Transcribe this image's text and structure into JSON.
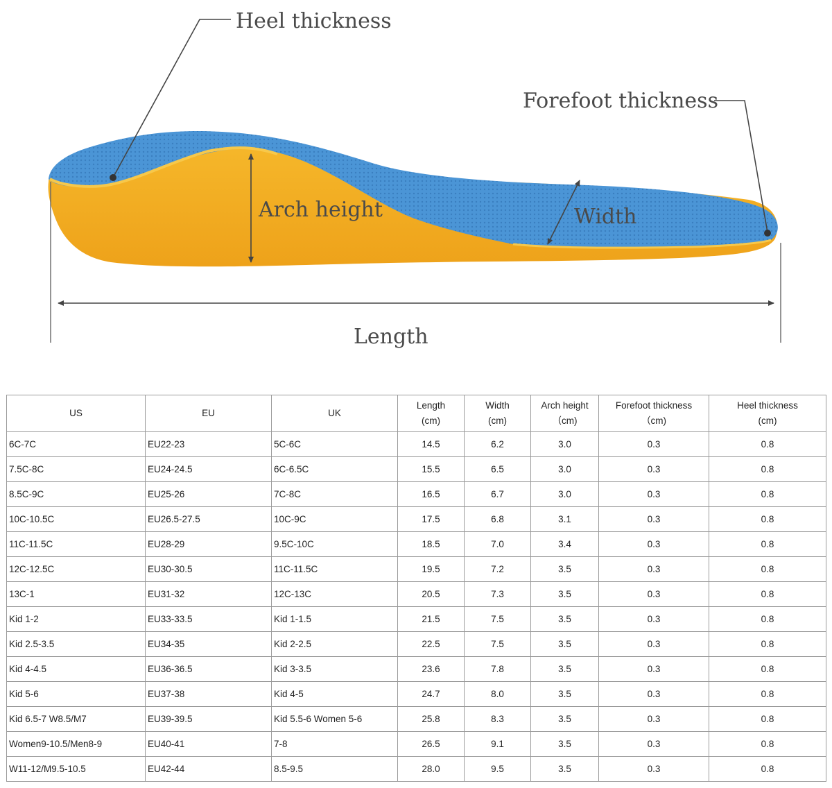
{
  "diagram": {
    "labels": {
      "heel": "Heel thickness",
      "forefoot": "Forefoot thickness",
      "arch": "Arch height",
      "width": "Width",
      "length": "Length"
    },
    "colors": {
      "top": "#4b95d6",
      "base": "#f2ad1e",
      "rim": "#f7c84a",
      "label": "#4a4a4a"
    }
  },
  "table": {
    "headers": [
      {
        "line1": "US",
        "line2": ""
      },
      {
        "line1": "EU",
        "line2": ""
      },
      {
        "line1": "UK",
        "line2": ""
      },
      {
        "line1": "Length",
        "line2": "(cm)"
      },
      {
        "line1": "Width",
        "line2": "(cm)"
      },
      {
        "line1": "Arch height",
        "line2": "（cm)"
      },
      {
        "line1": "Forefoot thickness",
        "line2": "（cm)"
      },
      {
        "line1": "Heel thickness",
        "line2": "(cm)"
      }
    ],
    "rows": [
      [
        "6C-7C",
        "EU22-23",
        "5C-6C",
        "14.5",
        "6.2",
        "3.0",
        "0.3",
        "0.8"
      ],
      [
        "7.5C-8C",
        "EU24-24.5",
        "6C-6.5C",
        "15.5",
        "6.5",
        "3.0",
        "0.3",
        "0.8"
      ],
      [
        "8.5C-9C",
        "EU25-26",
        "7C-8C",
        "16.5",
        "6.7",
        "3.0",
        "0.3",
        "0.8"
      ],
      [
        "10C-10.5C",
        "EU26.5-27.5",
        "10C-9C",
        "17.5",
        "6.8",
        "3.1",
        "0.3",
        "0.8"
      ],
      [
        "11C-11.5C",
        "EU28-29",
        "9.5C-10C",
        "18.5",
        "7.0",
        "3.4",
        "0.3",
        "0.8"
      ],
      [
        "12C-12.5C",
        "EU30-30.5",
        "11C-11.5C",
        "19.5",
        "7.2",
        "3.5",
        "0.3",
        "0.8"
      ],
      [
        "13C-1",
        "EU31-32",
        "12C-13C",
        "20.5",
        "7.3",
        "3.5",
        "0.3",
        "0.8"
      ],
      [
        "Kid 1-2",
        "EU33-33.5",
        "Kid 1-1.5",
        "21.5",
        "7.5",
        "3.5",
        "0.3",
        "0.8"
      ],
      [
        "Kid 2.5-3.5",
        "EU34-35",
        "Kid 2-2.5",
        "22.5",
        "7.5",
        "3.5",
        "0.3",
        "0.8"
      ],
      [
        "Kid 4-4.5",
        "EU36-36.5",
        "Kid 3-3.5",
        "23.6",
        "7.8",
        "3.5",
        "0.3",
        "0.8"
      ],
      [
        "Kid 5-6",
        "EU37-38",
        "Kid 4-5",
        "24.7",
        "8.0",
        "3.5",
        "0.3",
        "0.8"
      ],
      [
        "Kid 6.5-7 W8.5/M7",
        "EU39-39.5",
        "Kid 5.5-6 Women 5-6",
        "25.8",
        "8.3",
        "3.5",
        "0.3",
        "0.8"
      ],
      [
        "Women9-10.5/Men8-9",
        "EU40-41",
        "7-8",
        "26.5",
        "9.1",
        "3.5",
        "0.3",
        "0.8"
      ],
      [
        "W11-12/M9.5-10.5",
        "EU42-44",
        "8.5-9.5",
        "28.0",
        "9.5",
        "3.5",
        "0.3",
        "0.8"
      ]
    ]
  }
}
